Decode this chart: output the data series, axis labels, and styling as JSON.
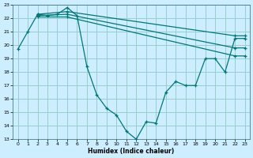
{
  "xlabel": "Humidex (Indice chaleur)",
  "bg_color": "#cceeff",
  "grid_color": "#99cccc",
  "line_color": "#007777",
  "xlim": [
    -0.5,
    23.5
  ],
  "ylim": [
    13,
    23
  ],
  "xticks": [
    0,
    1,
    2,
    3,
    4,
    5,
    6,
    7,
    8,
    9,
    10,
    11,
    12,
    13,
    14,
    15,
    16,
    17,
    18,
    19,
    20,
    21,
    22,
    23
  ],
  "yticks": [
    13,
    14,
    15,
    16,
    17,
    18,
    19,
    20,
    21,
    22,
    23
  ],
  "lines": [
    {
      "x": [
        0,
        1,
        2,
        3,
        4,
        5,
        6,
        7,
        8,
        9,
        10,
        11,
        12,
        13,
        14,
        15,
        16,
        17,
        18,
        19,
        20,
        21,
        22,
        23
      ],
      "y": [
        19.7,
        21.0,
        22.3,
        22.2,
        22.3,
        22.8,
        22.2,
        18.4,
        16.3,
        15.3,
        14.8,
        13.6,
        13.0,
        14.3,
        14.2,
        16.5,
        17.3,
        17.0,
        17.0,
        19.0,
        19.0,
        18.0,
        20.5,
        20.5
      ]
    },
    {
      "x": [
        2,
        5,
        22,
        23
      ],
      "y": [
        22.3,
        22.5,
        20.7,
        20.7
      ]
    },
    {
      "x": [
        2,
        5,
        22,
        23
      ],
      "y": [
        22.2,
        22.3,
        19.8,
        19.8
      ]
    },
    {
      "x": [
        2,
        5,
        22,
        23
      ],
      "y": [
        22.1,
        22.1,
        19.2,
        19.2
      ]
    }
  ]
}
